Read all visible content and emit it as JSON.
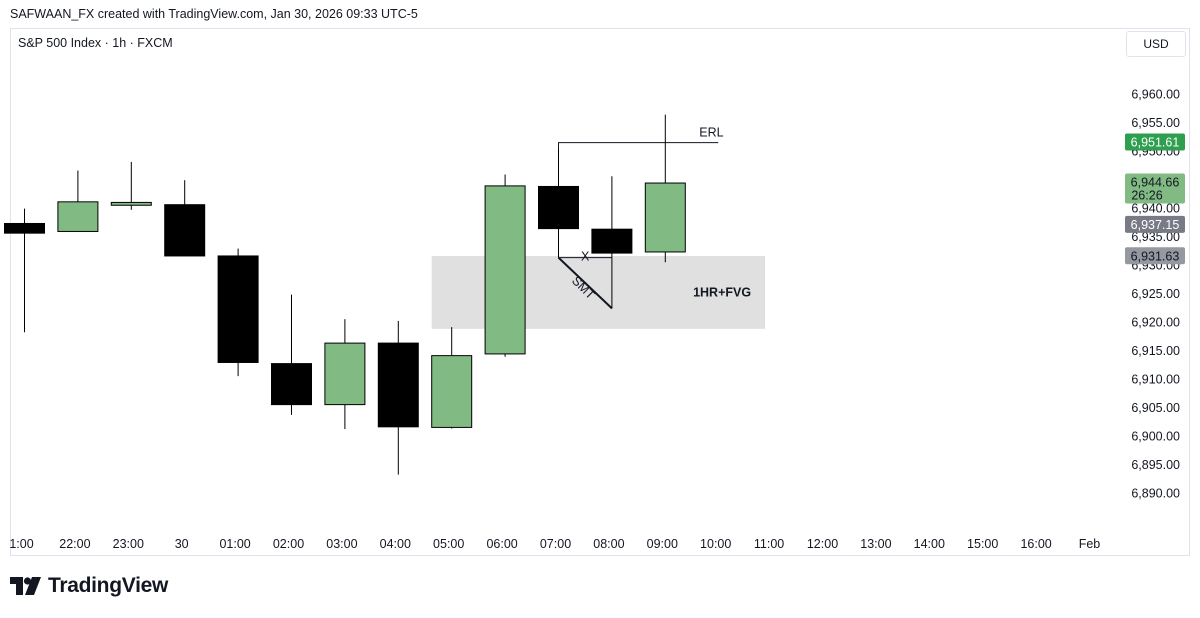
{
  "header": {
    "attribution": "SAFWAAN_FX created with TradingView.com, Jan 30, 2026 09:33 UTC-5"
  },
  "legend": {
    "symbol_line": "S&P 500 Index · 1h · FXCM"
  },
  "price_scale": {
    "currency": "USD"
  },
  "footer": {
    "brand": "TradingView"
  },
  "chart_data": {
    "type": "candlestick",
    "x_ticks": [
      "1:00",
      "22:00",
      "23:00",
      "30",
      "01:00",
      "02:00",
      "03:00",
      "04:00",
      "05:00",
      "06:00",
      "07:00",
      "08:00",
      "09:00",
      "10:00",
      "11:00",
      "12:00",
      "13:00",
      "14:00",
      "15:00",
      "16:00",
      "Feb"
    ],
    "y_ticks": [
      6890,
      6895,
      6900,
      6905,
      6910,
      6915,
      6920,
      6925,
      6930,
      6935,
      6940,
      6945,
      6950,
      6955,
      6960
    ],
    "ylim": [
      6887,
      6966
    ],
    "candles": [
      {
        "time": "21:00",
        "open": 6937.3,
        "high": 6939.9,
        "low": 6918.2,
        "close": 6935.6
      },
      {
        "time": "22:00",
        "open": 6935.9,
        "high": 6946.6,
        "low": 6935.9,
        "close": 6941.1
      },
      {
        "time": "23:00",
        "open": 6940.5,
        "high": 6948.1,
        "low": 6939.7,
        "close": 6941.0
      },
      {
        "time": "00:00",
        "open": 6940.6,
        "high": 6944.9,
        "low": 6931.6,
        "close": 6931.6
      },
      {
        "time": "01:00",
        "open": 6931.6,
        "high": 6932.9,
        "low": 6910.5,
        "close": 6912.9
      },
      {
        "time": "02:00",
        "open": 6912.7,
        "high": 6924.8,
        "low": 6903.7,
        "close": 6905.5
      },
      {
        "time": "03:00",
        "open": 6905.5,
        "high": 6920.5,
        "low": 6901.2,
        "close": 6916.3
      },
      {
        "time": "04:00",
        "open": 6916.3,
        "high": 6920.2,
        "low": 6893.2,
        "close": 6901.6
      },
      {
        "time": "05:00",
        "open": 6901.5,
        "high": 6919.1,
        "low": 6901.3,
        "close": 6914.1
      },
      {
        "time": "06:00",
        "open": 6914.4,
        "high": 6945.9,
        "low": 6913.9,
        "close": 6943.9
      },
      {
        "time": "07:00",
        "open": 6943.8,
        "high": 6950.4,
        "low": 6931.3,
        "close": 6936.4
      },
      {
        "time": "08:00",
        "open": 6936.3,
        "high": 6945.6,
        "low": 6922.4,
        "close": 6932.1
      },
      {
        "time": "09:00",
        "open": 6932.3,
        "high": 6956.4,
        "low": 6930.5,
        "close": 6944.4
      }
    ],
    "annotations": {
      "fvg_label": "1HR+FVG",
      "fvg_zone": {
        "top": 6931.6,
        "bottom": 6918.8,
        "from": "05:00",
        "to": "11:00"
      },
      "erl_label": "ERL",
      "erl_level": 6951.5,
      "smt_label": "SMT",
      "x_label": "X"
    },
    "price_labels": [
      {
        "value": "6,951.61",
        "color": "#2e9e4f",
        "text_color": "#ffffff"
      },
      {
        "value": "6,944.66",
        "sub": "26:26",
        "color": "#82ba84",
        "text_color": "#131722"
      },
      {
        "value": "6,937.15",
        "color": "#787b86",
        "text_color": "#ffffff"
      },
      {
        "value": "6,931.63",
        "color": "#9598a1",
        "text_color": "#131722"
      }
    ],
    "colors": {
      "up": "#82ba84",
      "down": "#000000",
      "fvg_fill": "#e0e0e0"
    }
  }
}
